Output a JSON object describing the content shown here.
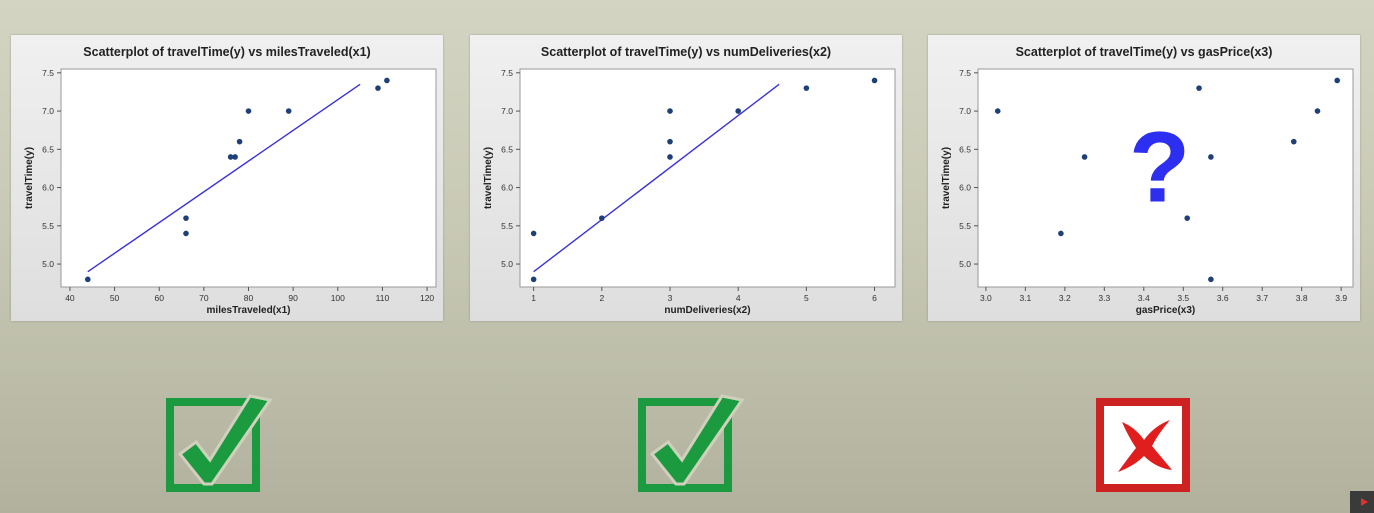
{
  "colors": {
    "point": "#1f3f78",
    "fit_line": "#3b32d8",
    "check": "#1c9a40",
    "cross_border": "#cc2222",
    "cross": "#e01e1e",
    "question": "#2c2ef0"
  },
  "chart_data": [
    {
      "type": "scatter",
      "title": "Scatterplot of travelTime(y) vs milesTraveled(x1)",
      "xlabel": "milesTraveled(x1)",
      "ylabel": "travelTime(y)",
      "xlim": [
        38,
        122
      ],
      "ylim": [
        4.7,
        7.55
      ],
      "xticks": [
        40,
        50,
        60,
        70,
        80,
        90,
        100,
        110,
        120
      ],
      "yticks": [
        5.0,
        5.5,
        6.0,
        6.5,
        7.0,
        7.5
      ],
      "x": [
        44,
        66,
        66,
        76,
        77,
        78,
        80,
        89,
        109,
        111
      ],
      "y": [
        4.8,
        5.4,
        5.6,
        6.4,
        6.4,
        6.6,
        7.0,
        7.0,
        7.3,
        7.4
      ],
      "fit_line": {
        "x": [
          44,
          105
        ],
        "y": [
          4.9,
          7.35
        ]
      }
    },
    {
      "type": "scatter",
      "title": "Scatterplot of travelTime(y) vs numDeliveries(x2)",
      "xlabel": "numDeliveries(x2)",
      "ylabel": "travelTime(y)",
      "xlim": [
        0.8,
        6.3
      ],
      "ylim": [
        4.7,
        7.55
      ],
      "xticks": [
        1,
        2,
        3,
        4,
        5,
        6
      ],
      "yticks": [
        5.0,
        5.5,
        6.0,
        6.5,
        7.0,
        7.5
      ],
      "x": [
        1,
        1,
        2,
        3,
        3,
        3,
        4,
        5,
        6
      ],
      "y": [
        4.8,
        5.4,
        5.6,
        6.4,
        6.6,
        7.0,
        7.0,
        7.3,
        7.4
      ],
      "fit_line": {
        "x": [
          1,
          4.6
        ],
        "y": [
          4.9,
          7.35
        ]
      }
    },
    {
      "type": "scatter",
      "title": "Scatterplot of travelTime(y) vs gasPrice(x3)",
      "xlabel": "gasPrice(x3)",
      "ylabel": "travelTime(y)",
      "xlim": [
        2.98,
        3.93
      ],
      "ylim": [
        4.7,
        7.55
      ],
      "xticks": [
        3.0,
        3.1,
        3.2,
        3.3,
        3.4,
        3.5,
        3.6,
        3.7,
        3.8,
        3.9
      ],
      "yticks": [
        5.0,
        5.5,
        6.0,
        6.5,
        7.0,
        7.5
      ],
      "x": [
        3.03,
        3.19,
        3.25,
        3.51,
        3.54,
        3.57,
        3.57,
        3.78,
        3.84,
        3.89
      ],
      "y": [
        7.0,
        5.4,
        6.4,
        5.6,
        7.3,
        6.4,
        4.8,
        6.6,
        7.0,
        7.4
      ],
      "overlay_text": "?"
    }
  ],
  "verdicts": [
    {
      "symbol": "check"
    },
    {
      "symbol": "check"
    },
    {
      "symbol": "cross"
    }
  ]
}
